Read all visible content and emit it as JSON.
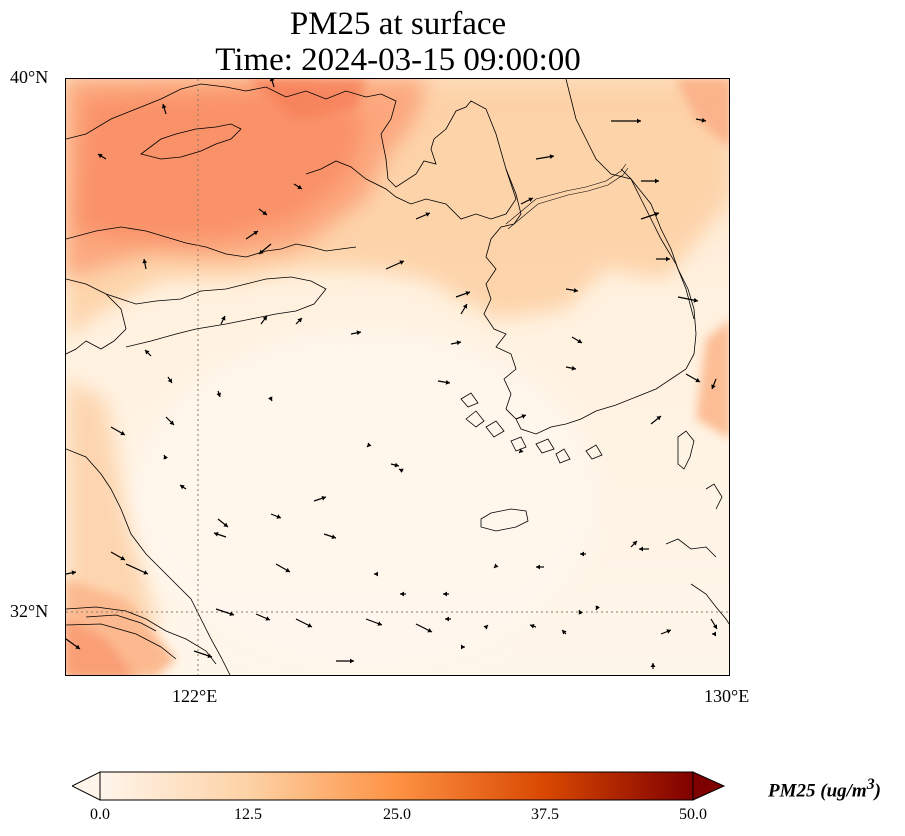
{
  "title_line1": "PM25 at surface",
  "title_line2": "Time: 2024-03-15 09:00:00",
  "axes": {
    "lat_labels": [
      "40°N",
      "32°N"
    ],
    "lon_labels": [
      "122°E",
      "130°E"
    ],
    "lat_range": [
      31,
      40
    ],
    "lon_range": [
      120,
      130
    ]
  },
  "colorbar": {
    "label_text": "PM25 (ug/m",
    "label_sup": "3",
    "label_close": ")",
    "ticks": [
      "0.0",
      "12.5",
      "25.0",
      "37.5",
      "50.0"
    ],
    "range": [
      0,
      50
    ],
    "colormap": [
      "#fff5eb",
      "#fdd2a5",
      "#fd9243",
      "#df4f05",
      "#7f2704"
    ],
    "extend": "both"
  },
  "style": {
    "land_line": "#000000",
    "gridline": "#8a7a6a",
    "high_pm": "#f9906a",
    "mid_pm": "#fdc89c",
    "low_pm": "#fff3e4"
  }
}
